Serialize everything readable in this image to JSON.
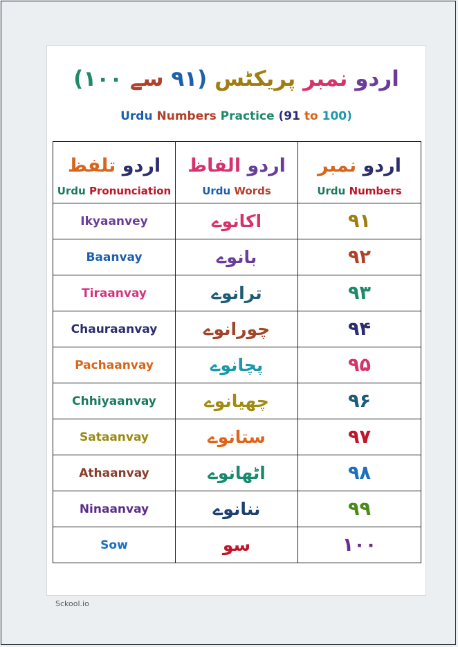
{
  "page": {
    "title_urdu": "اردو نمبر پریکٹس (۹۱ سے ۱۰۰)",
    "title_english": "Urdu Numbers Practice (91 to 100)",
    "credit": "Sckool.io"
  },
  "table": {
    "headers": [
      {
        "urdu": "اردو تلفظ",
        "english": "Urdu Pronunciation"
      },
      {
        "urdu": "اردو الفاظ",
        "english": "Urdu Words"
      },
      {
        "urdu": "اردو نمبر",
        "english": "Urdu Numbers"
      }
    ],
    "rows": [
      {
        "pronunciation": "Ikyaanvey",
        "word": "اکانوے",
        "number": "۹۱",
        "colors": {
          "pron": "#6a3d9a",
          "word": "#d6336c",
          "num": "#a07d12"
        }
      },
      {
        "pronunciation": "Baanvay",
        "word": "بانوے",
        "number": "۹۲",
        "colors": {
          "pron": "#1c5fae",
          "word": "#6a3d9a",
          "num": "#b1402a"
        }
      },
      {
        "pronunciation": "Tiraanvay",
        "word": "ترانوے",
        "number": "۹۳",
        "colors": {
          "pron": "#d6337c",
          "word": "#1d5c74",
          "num": "#1f8a6a"
        }
      },
      {
        "pronunciation": "Chauraanvay",
        "word": "چورانوے",
        "number": "۹۴",
        "colors": {
          "pron": "#2b2d6e",
          "word": "#a0442a",
          "num": "#2b2d6e"
        }
      },
      {
        "pronunciation": "Pachaanvay",
        "word": "پچانوے",
        "number": "۹۵",
        "colors": {
          "pron": "#d9641a",
          "word": "#1e98a8",
          "num": "#d6336c"
        }
      },
      {
        "pronunciation": "Chhiyaanvay",
        "word": "چھیانوے",
        "number": "۹۶",
        "colors": {
          "pron": "#1a7a5e",
          "word": "#a08c12",
          "num": "#1d5c74"
        }
      },
      {
        "pronunciation": "Sataanvay",
        "word": "ستانوے",
        "number": "۹۷",
        "colors": {
          "pron": "#9a8a12",
          "word": "#e0651a",
          "num": "#c0162a"
        }
      },
      {
        "pronunciation": "Athaanvay",
        "word": "اٹھانوے",
        "number": "۹۸",
        "colors": {
          "pron": "#8a3b2a",
          "word": "#1a8a6e",
          "num": "#1c6fc0"
        }
      },
      {
        "pronunciation": "Ninaanvay",
        "word": "ننانوے",
        "number": "۹۹",
        "colors": {
          "pron": "#5a2d8a",
          "word": "#1d4070",
          "num": "#4a8a1a"
        }
      },
      {
        "pronunciation": "Sow",
        "word": "سو",
        "number": "۱۰۰",
        "colors": {
          "pron": "#1c6fc0",
          "word": "#c0162a",
          "num": "#6a2d8a"
        }
      }
    ]
  },
  "palette": [
    "#6a3d9a",
    "#d6336c",
    "#a07d12",
    "#1c5fae",
    "#b1402a",
    "#1f8a6a",
    "#2b2d6e",
    "#d9641a",
    "#1e98a8",
    "#1a7a5e",
    "#c0162a",
    "#4a8a1a"
  ]
}
